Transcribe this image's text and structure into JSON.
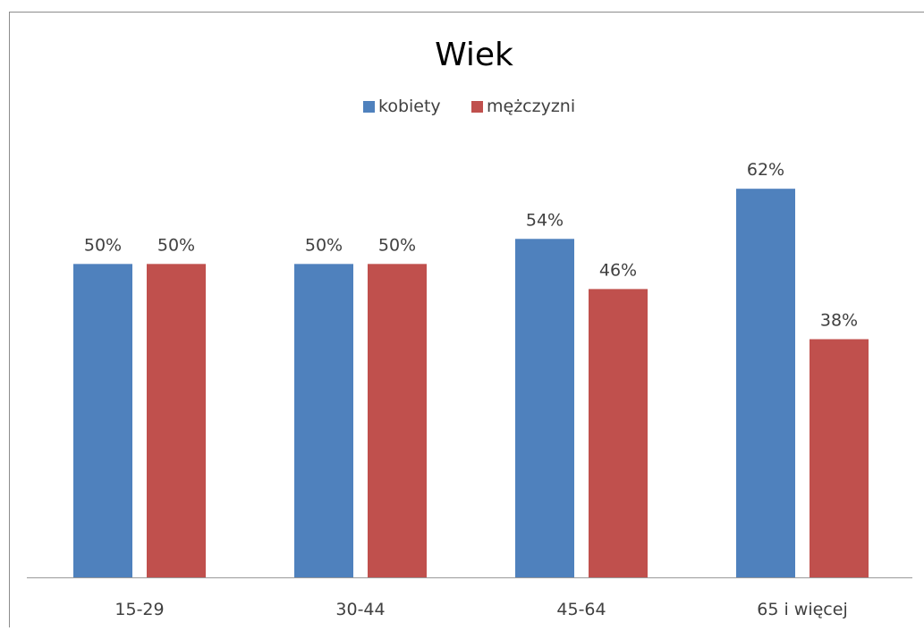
{
  "chart_data": {
    "type": "bar",
    "title": "Wiek",
    "categories": [
      "15-29",
      "30-44",
      "45-64",
      "65 i więcej"
    ],
    "series": [
      {
        "name": "kobiety",
        "values": [
          50,
          50,
          54,
          62
        ],
        "labels": [
          "50%",
          "50%",
          "54%",
          "62%"
        ],
        "color": "#4F81BD"
      },
      {
        "name": "mężczyzni",
        "values": [
          50,
          50,
          46,
          38
        ],
        "labels": [
          "50%",
          "50%",
          "46%",
          "38%"
        ],
        "color": "#C0504D"
      }
    ],
    "ylim": [
      0,
      75
    ],
    "grid": false,
    "legend_position": "top"
  }
}
